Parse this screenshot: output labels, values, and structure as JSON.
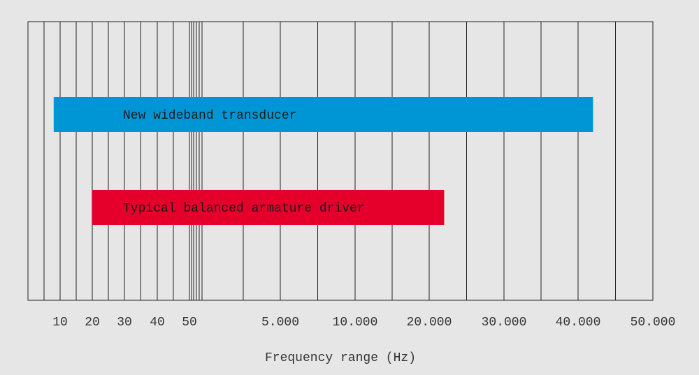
{
  "chart_data": {
    "type": "range_bar",
    "categories": [
      "New wideband transducer",
      "Typical balanced armature driver"
    ],
    "starts": [
      8,
      20
    ],
    "ends": [
      42000,
      22000
    ],
    "colors": [
      "#0096d6",
      "#e4002b"
    ],
    "xlabel": "Frequency range (Hz)",
    "xlim": [
      0,
      50000
    ],
    "xticks": [
      10,
      20,
      30,
      40,
      50,
      {
        "value": 5000,
        "label": "5.000"
      },
      {
        "value": 10000,
        "label": "10.000"
      },
      {
        "value": 20000,
        "label": "20.000"
      },
      {
        "value": 30000,
        "label": "30.000"
      },
      {
        "value": 40000,
        "label": "40.000"
      },
      {
        "value": 50000,
        "label": "50.000"
      }
    ],
    "minor_xticks": [
      5,
      15,
      25,
      35,
      45,
      7500,
      15000,
      25000,
      35000,
      45000
    ],
    "grid": true
  }
}
